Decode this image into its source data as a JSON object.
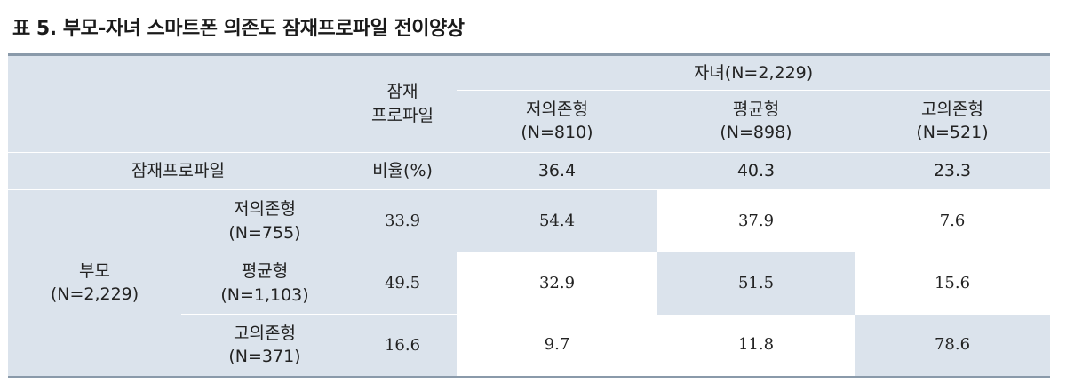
{
  "title": "표 5. 부모-자녀 스마트폰 의존도 잠재프로파일 전이양상",
  "header": {
    "latent_profile_col": [
      "잠재",
      "프로파일"
    ],
    "child_group": "자녀(N=2,229)",
    "child_cols": [
      {
        "name": "저의존형",
        "n": "(N=810)"
      },
      {
        "name": "평균형",
        "n": "(N=898)"
      },
      {
        "name": "고의존형",
        "n": "(N=521)"
      }
    ]
  },
  "ratio_row": {
    "label": "잠재프로파일",
    "unit": "비율(%)",
    "values": [
      "36.4",
      "40.3",
      "23.3"
    ]
  },
  "parent": {
    "label": [
      "부모",
      "(N=2,229)"
    ],
    "rows": [
      {
        "name": "저의존형",
        "n": "(N=755)",
        "profile": "33.9",
        "values": [
          "54.4",
          "37.9",
          "7.6"
        ]
      },
      {
        "name": "평균형",
        "n": "(N=1,103)",
        "profile": "49.5",
        "values": [
          "32.9",
          "51.5",
          "15.6"
        ]
      },
      {
        "name": "고의존형",
        "n": "(N=371)",
        "profile": "16.6",
        "values": [
          "9.7",
          "11.8",
          "78.6"
        ]
      }
    ]
  }
}
